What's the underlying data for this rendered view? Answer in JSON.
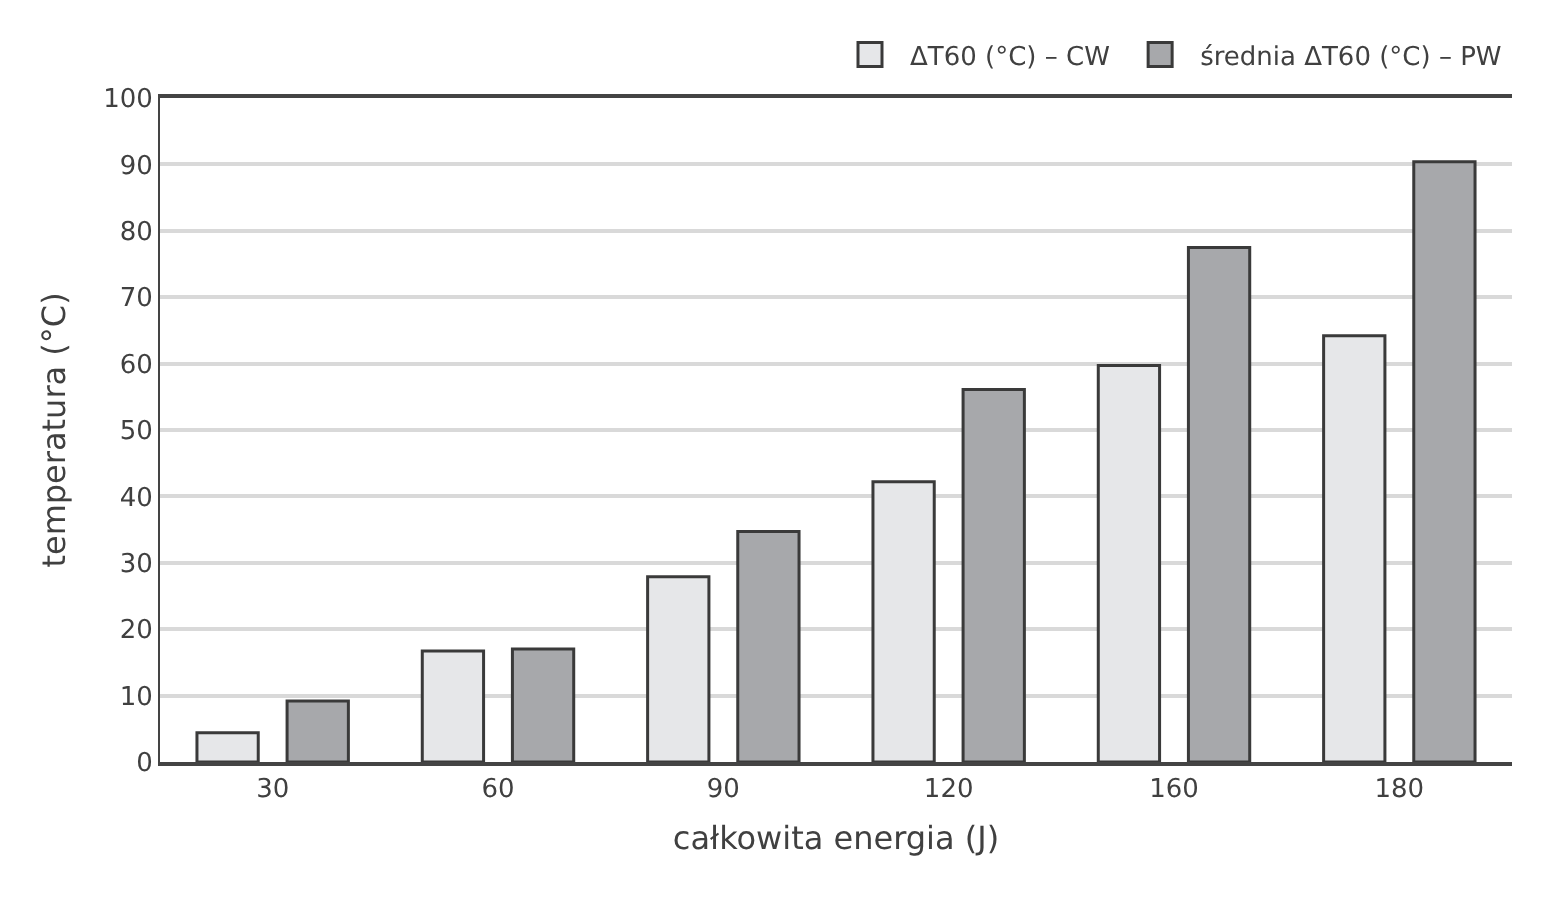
{
  "chart_data": {
    "type": "bar",
    "xlabel": "całkowita energia (J)",
    "ylabel": "temperatura (°C)",
    "categories": [
      "30",
      "60",
      "90",
      "120",
      "160",
      "180"
    ],
    "series": [
      {
        "name": "ΔT60 (°C) – CW",
        "color": "#e6e7e9",
        "values": [
          4.4,
          16.7,
          27.9,
          42.2,
          59.7,
          64.2
        ]
      },
      {
        "name": "średnia ΔT60 (°C) – PW",
        "color": "#a7a8ab",
        "values": [
          9.2,
          17,
          34.7,
          56.1,
          77.5,
          90.4
        ]
      }
    ],
    "ylim": [
      0,
      100
    ],
    "yticks": [
      0,
      10,
      20,
      30,
      40,
      50,
      60,
      70,
      80,
      90,
      100
    ],
    "grid": "y",
    "legend": "top right"
  }
}
